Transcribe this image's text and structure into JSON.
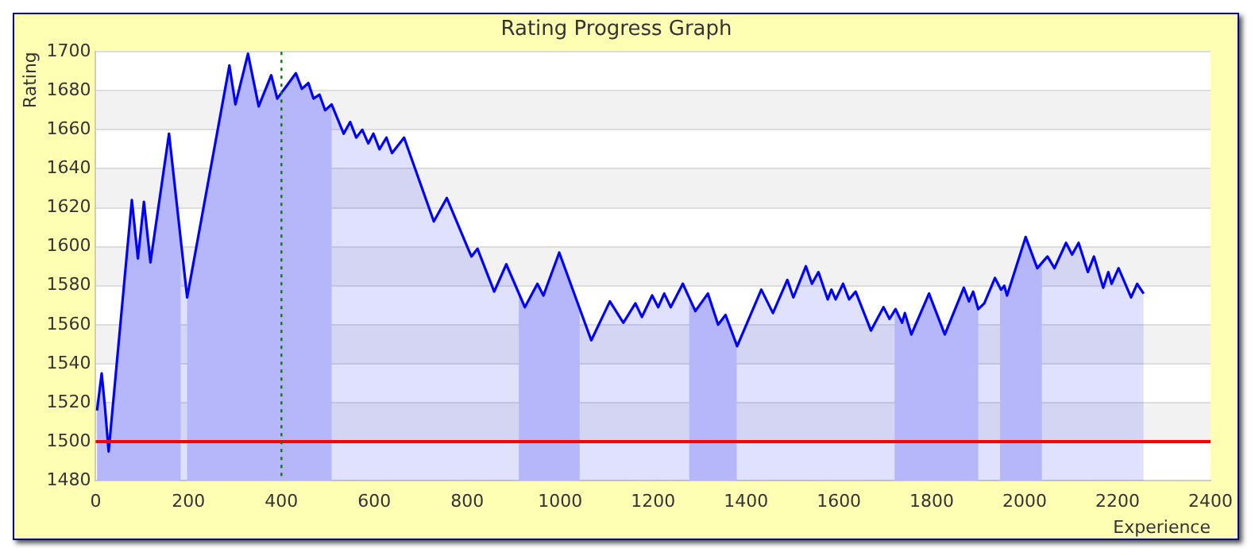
{
  "chart_data": {
    "type": "area",
    "title": "Rating Progress Graph",
    "xlabel": "Experience",
    "ylabel": "Rating",
    "series": [
      {
        "color": "#0000ff",
        "x": [
          3,
          13,
          20,
          28,
          78,
          91,
          104,
          118,
          158,
          197,
          288,
          301,
          328,
          351,
          378,
          391,
          431,
          444,
          458,
          469,
          482,
          494,
          508,
          534,
          548,
          561,
          574,
          587,
          598,
          611,
          626,
          638,
          664,
          728,
          756,
          800,
          809,
          822,
          858,
          884,
          924,
          951,
          964,
          998,
          1067,
          1107,
          1136,
          1162,
          1176,
          1198,
          1211,
          1224,
          1238,
          1264,
          1291,
          1318,
          1340,
          1356,
          1381,
          1433,
          1458,
          1489,
          1502,
          1529,
          1542,
          1556,
          1576,
          1584,
          1593,
          1609,
          1622,
          1636,
          1669,
          1696,
          1709,
          1722,
          1736,
          1742,
          1756,
          1794,
          1828,
          1869,
          1880,
          1889,
          1900,
          1913,
          1936,
          1949,
          1956,
          1962,
          2002,
          2027,
          2049,
          2064,
          2089,
          2102,
          2116,
          2136,
          2149,
          2169,
          2180,
          2187,
          2202,
          2229,
          2242,
          2256
        ],
        "values": [
          1516,
          1535,
          1518,
          1495,
          1624,
          1594,
          1623,
          1592,
          1658,
          1574,
          1693,
          1673,
          1699,
          1672,
          1688,
          1676,
          1689,
          1681,
          1684,
          1676,
          1678,
          1670,
          1673,
          1658,
          1664,
          1656,
          1660,
          1653,
          1658,
          1650,
          1656,
          1648,
          1656,
          1613,
          1625,
          1600,
          1595,
          1599,
          1577,
          1591,
          1569,
          1581,
          1575,
          1597,
          1552,
          1572,
          1561,
          1571,
          1564,
          1575,
          1569,
          1576,
          1569,
          1581,
          1567,
          1576,
          1560,
          1565,
          1549,
          1578,
          1566,
          1583,
          1574,
          1590,
          1581,
          1587,
          1573,
          1578,
          1573,
          1581,
          1573,
          1577,
          1557,
          1569,
          1563,
          1568,
          1561,
          1566,
          1555,
          1576,
          1555,
          1579,
          1572,
          1577,
          1568,
          1571,
          1584,
          1578,
          1580,
          1575,
          1605,
          1589,
          1595,
          1589,
          1602,
          1596,
          1602,
          1587,
          1595,
          1579,
          1587,
          1581,
          1589,
          1574,
          1581,
          1576
        ]
      }
    ],
    "xlim": [
      0,
      2400
    ],
    "xticks": [
      0,
      200,
      400,
      600,
      800,
      1000,
      1200,
      1400,
      1600,
      1800,
      2000,
      2200,
      2400
    ],
    "ylim": [
      1480,
      1700
    ],
    "yticks": [
      1480,
      1500,
      1520,
      1540,
      1560,
      1580,
      1600,
      1620,
      1640,
      1660,
      1680,
      1700
    ],
    "grid": "y",
    "legend": false,
    "ref_lines": [
      {
        "axis": "y",
        "value": 1500,
        "color": "#ff0000"
      },
      {
        "axis": "x",
        "value": 400,
        "color": "#008000",
        "line_style": "dotted"
      }
    ],
    "bands": [
      {
        "axis": "x",
        "from": 0,
        "to": 183,
        "color": "#d0d0fa"
      },
      {
        "axis": "x",
        "from": 197,
        "to": 508,
        "color": "#d0d0fa"
      },
      {
        "axis": "x",
        "from": 911,
        "to": 1042,
        "color": "#d0d0fa"
      },
      {
        "axis": "x",
        "from": 1278,
        "to": 1380,
        "color": "#d0d0fa"
      },
      {
        "axis": "x",
        "from": 1720,
        "to": 1900,
        "color": "#d0d0fa"
      },
      {
        "axis": "x",
        "from": 1947,
        "to": 2037,
        "color": "#d0d0fa"
      }
    ]
  }
}
